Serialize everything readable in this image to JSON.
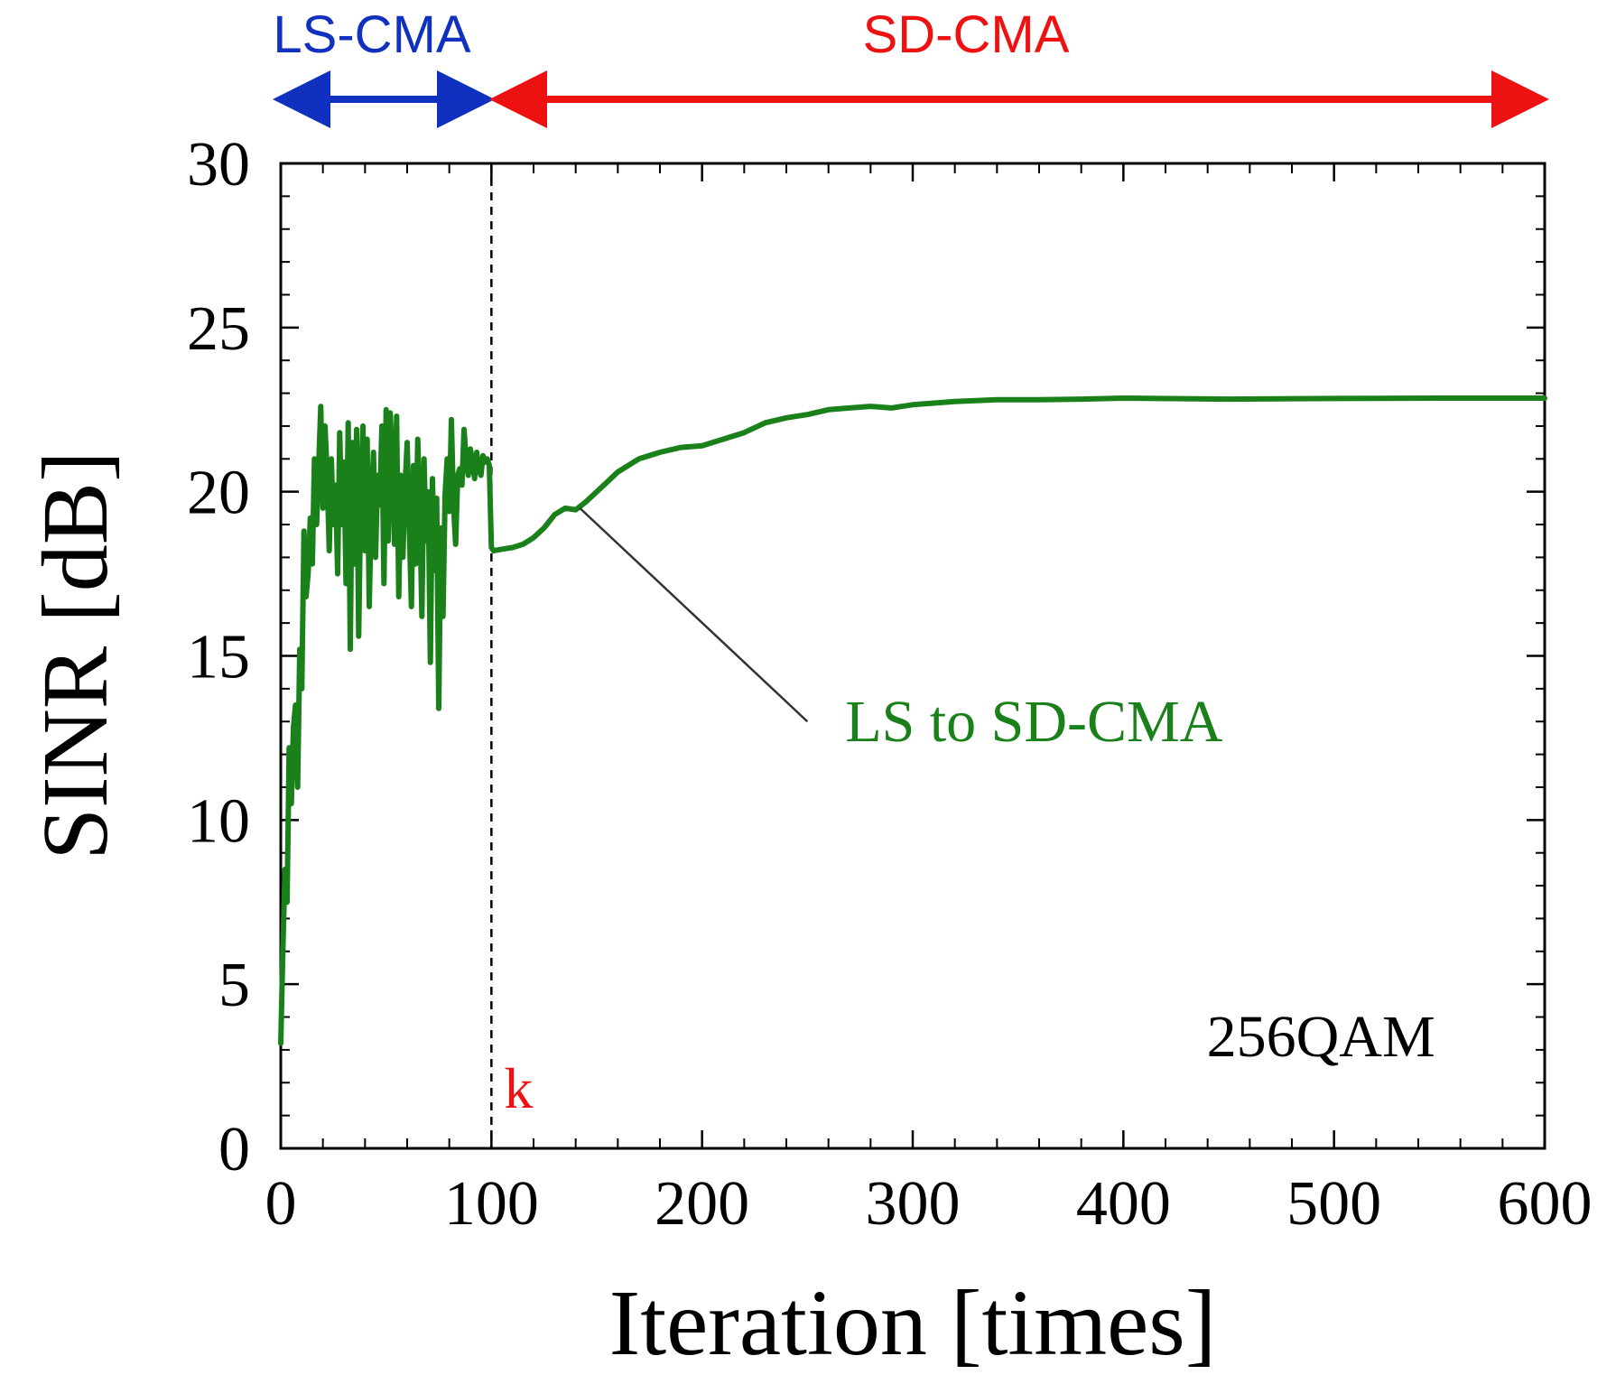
{
  "chart_data": {
    "type": "line",
    "title": "",
    "xlabel": "Iteration [times]",
    "ylabel": "SINR [dB]",
    "xlim": [
      0,
      600
    ],
    "ylim": [
      0,
      30
    ],
    "xticks": [
      0,
      100,
      200,
      300,
      400,
      500,
      600
    ],
    "yticks": [
      0,
      5,
      10,
      15,
      20,
      25,
      30
    ],
    "grid": false,
    "colors": {
      "series": "#1a801a",
      "ls": "#1030c0",
      "sd": "#ee1111",
      "k": "#ee1111",
      "axis": "#000000",
      "leader": "#333333"
    },
    "regions": [
      {
        "label": "LS-CMA",
        "x_start": 0,
        "x_end": 100,
        "color": "#1030c0"
      },
      {
        "label": "SD-CMA",
        "x_start": 100,
        "x_end": 600,
        "color": "#ee1111"
      }
    ],
    "switch_marker": {
      "label": "k",
      "x": 100
    },
    "annotation": {
      "text": "LS to SD-CMA",
      "point": [
        142,
        19.5
      ]
    },
    "inset_label": "256QAM",
    "series": [
      {
        "name": "LS to SD-CMA",
        "x": [
          0,
          1,
          2,
          3,
          4,
          5,
          6,
          7,
          8,
          9,
          10,
          11,
          12,
          13,
          14,
          15,
          16,
          17,
          18,
          19,
          20,
          21,
          22,
          23,
          24,
          25,
          26,
          27,
          28,
          29,
          30,
          31,
          32,
          33,
          34,
          35,
          36,
          37,
          38,
          39,
          40,
          41,
          42,
          43,
          44,
          45,
          46,
          47,
          48,
          49,
          50,
          51,
          52,
          53,
          54,
          55,
          56,
          57,
          58,
          59,
          60,
          61,
          62,
          63,
          64,
          65,
          66,
          67,
          68,
          69,
          70,
          71,
          72,
          73,
          74,
          75,
          76,
          77,
          78,
          79,
          80,
          81,
          82,
          83,
          84,
          85,
          86,
          87,
          88,
          89,
          90,
          91,
          92,
          93,
          94,
          95,
          96,
          97,
          98,
          99,
          100,
          101,
          105,
          110,
          115,
          120,
          125,
          130,
          135,
          140,
          145,
          150,
          155,
          160,
          165,
          170,
          180,
          190,
          200,
          210,
          220,
          230,
          240,
          250,
          260,
          270,
          280,
          290,
          300,
          320,
          340,
          360,
          380,
          400,
          450,
          500,
          550,
          600
        ],
        "values": [
          3.2,
          6.0,
          8.5,
          7.5,
          12.2,
          10.5,
          12.8,
          13.5,
          11.0,
          15.2,
          14.0,
          18.8,
          16.8,
          17.5,
          19.2,
          17.8,
          21.0,
          19.0,
          20.8,
          22.6,
          19.5,
          22.0,
          20.6,
          18.2,
          21.0,
          19.0,
          20.2,
          17.5,
          21.8,
          19.0,
          20.9,
          17.2,
          22.1,
          15.2,
          21.5,
          17.8,
          21.9,
          15.6,
          20.0,
          22.0,
          18.2,
          21.6,
          16.5,
          19.5,
          21.2,
          18.0,
          20.5,
          19.6,
          22.0,
          17.2,
          22.5,
          18.5,
          22.4,
          20.8,
          18.4,
          22.3,
          16.8,
          20.5,
          18.0,
          20.2,
          21.5,
          19.0,
          16.5,
          20.8,
          17.8,
          21.6,
          19.5,
          16.2,
          21.0,
          18.5,
          20.0,
          14.8,
          20.4,
          17.6,
          19.8,
          13.4,
          18.9,
          16.2,
          19.9,
          21.0,
          19.4,
          22.2,
          19.6,
          18.4,
          20.5,
          20.7,
          20.2,
          21.9,
          21.0,
          20.5,
          21.3,
          20.9,
          20.4,
          21.2,
          20.7,
          20.5,
          21.1,
          20.9,
          21.0,
          20.8,
          18.3,
          18.2,
          18.25,
          18.3,
          18.4,
          18.6,
          18.9,
          19.3,
          19.5,
          19.45,
          19.7,
          20.0,
          20.3,
          20.6,
          20.8,
          21.0,
          21.2,
          21.35,
          21.4,
          21.6,
          21.8,
          22.1,
          22.25,
          22.35,
          22.5,
          22.55,
          22.6,
          22.55,
          22.65,
          22.75,
          22.8,
          22.8,
          22.82,
          22.85,
          22.82,
          22.84,
          22.85,
          22.85
        ]
      }
    ]
  }
}
